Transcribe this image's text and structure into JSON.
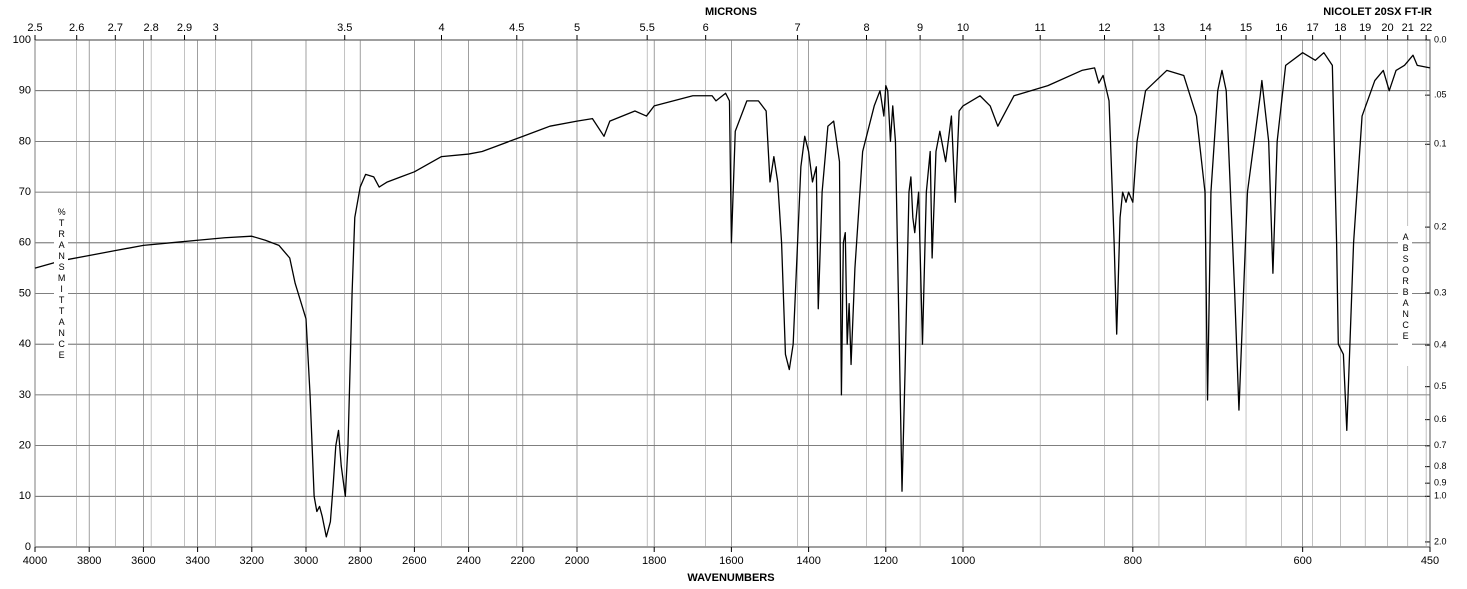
{
  "chart_data": {
    "type": "line",
    "title": "MICRONS",
    "subtitle": "NICOLET 20SX FT-IR",
    "x_label": "WAVENUMBERS",
    "y_label": "%TRANSMITTANCE",
    "y2_label": "ABSORBANCE",
    "color": "#000000",
    "grid": true,
    "xlim": [
      4000,
      450
    ],
    "x_scale_breaks": [
      2000,
      1000
    ],
    "xticks": [
      4000,
      3800,
      3600,
      3400,
      3200,
      3000,
      2800,
      2600,
      2400,
      2200,
      2000,
      1800,
      1600,
      1400,
      1200,
      1000,
      800,
      600,
      450
    ],
    "x2ticks": [
      2.5,
      2.6,
      2.7,
      2.8,
      2.9,
      3,
      3.5,
      4,
      4.5,
      5,
      5.5,
      6,
      7,
      8,
      9,
      10,
      11,
      12,
      13,
      14,
      15,
      16,
      17,
      18,
      19,
      20,
      21,
      22
    ],
    "ylim": [
      0,
      100
    ],
    "yticks": [
      0,
      10,
      20,
      30,
      40,
      50,
      60,
      70,
      80,
      90,
      100
    ],
    "y2_scale": "absorbance",
    "y2ticks": [
      {
        "value": 0,
        "label": "0.0"
      },
      {
        "value": 0.05,
        "label": ".05"
      },
      {
        "value": 0.1,
        "label": "0.1"
      },
      0.2,
      0.3,
      0.4,
      0.5,
      0.6,
      0.7,
      0.8,
      0.9,
      {
        "value": 1,
        "label": "1.0"
      },
      {
        "value": 2,
        "label": "2.0"
      }
    ],
    "x": [
      4000,
      3900,
      3800,
      3700,
      3600,
      3500,
      3400,
      3300,
      3200,
      3150,
      3100,
      3060,
      3040,
      3000,
      2985,
      2970,
      2960,
      2950,
      2940,
      2925,
      2910,
      2900,
      2890,
      2880,
      2870,
      2855,
      2845,
      2830,
      2820,
      2800,
      2780,
      2750,
      2730,
      2700,
      2650,
      2600,
      2550,
      2500,
      2400,
      2350,
      2300,
      2200,
      2100,
      2000,
      1960,
      1930,
      1915,
      1850,
      1820,
      1800,
      1700,
      1650,
      1640,
      1615,
      1605,
      1600,
      1590,
      1560,
      1530,
      1510,
      1500,
      1490,
      1480,
      1470,
      1460,
      1450,
      1440,
      1420,
      1410,
      1400,
      1390,
      1380,
      1375,
      1365,
      1350,
      1335,
      1320,
      1315,
      1310,
      1305,
      1300,
      1295,
      1290,
      1280,
      1260,
      1230,
      1215,
      1205,
      1200,
      1195,
      1188,
      1182,
      1175,
      1165,
      1158,
      1150,
      1140,
      1135,
      1130,
      1125,
      1115,
      1105,
      1095,
      1085,
      1080,
      1070,
      1060,
      1045,
      1030,
      1020,
      1010,
      1000,
      980,
      968,
      959,
      940,
      900,
      860,
      845,
      840,
      835,
      828,
      822,
      819,
      815,
      812,
      808,
      805,
      800,
      795,
      785,
      760,
      740,
      725,
      715,
      712,
      708,
      700,
      695,
      690,
      680,
      675,
      665,
      650,
      648,
      640,
      635,
      630,
      620,
      600,
      585,
      575,
      565,
      560,
      558,
      552,
      548,
      540,
      530,
      515,
      505,
      498,
      490,
      480,
      470,
      465,
      450
    ],
    "values": [
      55,
      56.5,
      57.5,
      58.5,
      59.5,
      60,
      60.5,
      61,
      61.3,
      60.5,
      59.5,
      57,
      52,
      45,
      30,
      10,
      7,
      8,
      6,
      2,
      5,
      12,
      20,
      23,
      16,
      10,
      20,
      50,
      65,
      71,
      73.5,
      73,
      71,
      72,
      73,
      74,
      75.5,
      77,
      77.5,
      78,
      79,
      81,
      83,
      84,
      84.5,
      81,
      84,
      86,
      85,
      87,
      89,
      89,
      88,
      89.5,
      88,
      60,
      82,
      88,
      88,
      86,
      72,
      77,
      72,
      60,
      38,
      35,
      40,
      75,
      81,
      78,
      72,
      75,
      47,
      70,
      83,
      84,
      76,
      30,
      60,
      62,
      40,
      48,
      36,
      55,
      78,
      87,
      90,
      85,
      91,
      90,
      80,
      87,
      80,
      40,
      11,
      35,
      70,
      73,
      65,
      62,
      70,
      40,
      70,
      78,
      57,
      78,
      82,
      76,
      85,
      68,
      86,
      87,
      89,
      87,
      83,
      89,
      91,
      94,
      94.5,
      91.5,
      93,
      88,
      60,
      42,
      65,
      70,
      68,
      70,
      68,
      80,
      90,
      94,
      93,
      85,
      70,
      29,
      70,
      90,
      94,
      90,
      50,
      27,
      70,
      89,
      92,
      80,
      54,
      80,
      95,
      97.5,
      96,
      97.5,
      95,
      60,
      40,
      38,
      23,
      60,
      85,
      92,
      94,
      90,
      94,
      95,
      97,
      95,
      94.5
    ]
  }
}
